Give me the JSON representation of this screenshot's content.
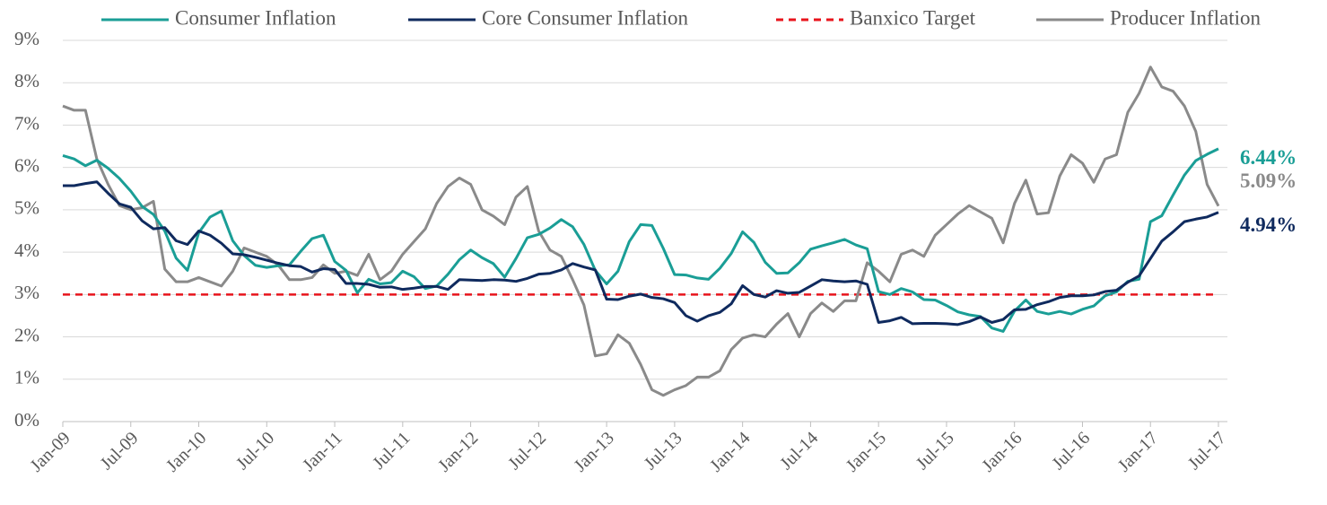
{
  "chart_data": {
    "type": "line",
    "categories": [
      "Jan-09",
      null,
      null,
      null,
      null,
      null,
      "Jul-09",
      null,
      null,
      null,
      null,
      null,
      "Jan-10",
      null,
      null,
      null,
      null,
      null,
      "Jul-10",
      null,
      null,
      null,
      null,
      null,
      "Jan-11",
      null,
      null,
      null,
      null,
      null,
      "Jul-11",
      null,
      null,
      null,
      null,
      null,
      "Jan-12",
      null,
      null,
      null,
      null,
      null,
      "Jul-12",
      null,
      null,
      null,
      null,
      null,
      "Jan-13",
      null,
      null,
      null,
      null,
      null,
      "Jul-13",
      null,
      null,
      null,
      null,
      null,
      "Jan-14",
      null,
      null,
      null,
      null,
      null,
      "Jul-14",
      null,
      null,
      null,
      null,
      null,
      "Jan-15",
      null,
      null,
      null,
      null,
      null,
      "Jul-15",
      null,
      null,
      null,
      null,
      null,
      "Jan-16",
      null,
      null,
      null,
      null,
      null,
      "Jul-16",
      null,
      null,
      null,
      null,
      null,
      "Jan-17",
      null,
      null,
      null,
      null,
      null,
      "Jul-17"
    ],
    "ylim": [
      0,
      9
    ],
    "yticks": [
      {
        "value": 0,
        "label": "0%"
      },
      {
        "value": 1,
        "label": "1%"
      },
      {
        "value": 2,
        "label": "2%"
      },
      {
        "value": 3,
        "label": "3%"
      },
      {
        "value": 4,
        "label": "4%"
      },
      {
        "value": 5,
        "label": "5%"
      },
      {
        "value": 6,
        "label": "6%"
      },
      {
        "value": 7,
        "label": "7%"
      },
      {
        "value": 8,
        "label": "8%"
      },
      {
        "value": 9,
        "label": "9%"
      }
    ],
    "grid": true,
    "legend": "top",
    "series": [
      {
        "name": "Consumer Inflation",
        "color": "#1a9e96",
        "dashed": false,
        "end_label": "6.44%",
        "values": [
          6.28,
          6.2,
          6.04,
          6.17,
          5.98,
          5.74,
          5.44,
          5.08,
          4.89,
          4.5,
          3.86,
          3.57,
          4.46,
          4.83,
          4.97,
          4.27,
          3.92,
          3.69,
          3.64,
          3.68,
          3.7,
          4.02,
          4.32,
          4.4,
          3.78,
          3.57,
          3.04,
          3.36,
          3.25,
          3.28,
          3.55,
          3.42,
          3.14,
          3.2,
          3.48,
          3.82,
          4.05,
          3.87,
          3.73,
          3.41,
          3.85,
          4.34,
          4.42,
          4.57,
          4.77,
          4.6,
          4.18,
          3.57,
          3.25,
          3.55,
          4.25,
          4.65,
          4.63,
          4.09,
          3.47,
          3.46,
          3.39,
          3.36,
          3.62,
          3.97,
          4.48,
          4.23,
          3.76,
          3.5,
          3.51,
          3.75,
          4.07,
          4.15,
          4.22,
          4.3,
          4.17,
          4.08,
          3.07,
          3.0,
          3.14,
          3.06,
          2.88,
          2.87,
          2.74,
          2.59,
          2.52,
          2.48,
          2.21,
          2.13,
          2.61,
          2.87,
          2.6,
          2.54,
          2.6,
          2.54,
          2.65,
          2.73,
          2.97,
          3.06,
          3.31,
          3.36,
          4.72,
          4.86,
          5.35,
          5.82,
          6.16,
          6.31,
          6.44
        ]
      },
      {
        "name": "Core Consumer Inflation",
        "color": "#0f2a5e",
        "dashed": false,
        "end_label": "4.94%",
        "values": [
          5.57,
          5.57,
          5.62,
          5.66,
          5.39,
          5.14,
          5.06,
          4.74,
          4.55,
          4.58,
          4.27,
          4.18,
          4.5,
          4.4,
          4.21,
          3.96,
          3.94,
          3.88,
          3.81,
          3.74,
          3.68,
          3.66,
          3.53,
          3.61,
          3.59,
          3.26,
          3.26,
          3.24,
          3.17,
          3.18,
          3.12,
          3.15,
          3.19,
          3.19,
          3.12,
          3.35,
          3.34,
          3.33,
          3.35,
          3.34,
          3.31,
          3.38,
          3.48,
          3.5,
          3.58,
          3.73,
          3.65,
          3.58,
          2.89,
          2.88,
          2.96,
          3.01,
          2.93,
          2.9,
          2.81,
          2.5,
          2.37,
          2.5,
          2.58,
          2.78,
          3.21,
          3.0,
          2.94,
          3.09,
          3.03,
          3.05,
          3.2,
          3.35,
          3.32,
          3.3,
          3.32,
          3.24,
          2.34,
          2.38,
          2.46,
          2.31,
          2.32,
          2.32,
          2.31,
          2.29,
          2.36,
          2.47,
          2.34,
          2.41,
          2.64,
          2.65,
          2.76,
          2.83,
          2.93,
          2.97,
          2.97,
          2.99,
          3.07,
          3.1,
          3.29,
          3.44,
          3.85,
          4.26,
          4.48,
          4.72,
          4.78,
          4.83,
          4.94
        ]
      },
      {
        "name": "Banxico Target",
        "color": "#e8141c",
        "dashed": true,
        "values": [
          3,
          3,
          3,
          3,
          3,
          3,
          3,
          3,
          3,
          3,
          3,
          3,
          3,
          3,
          3,
          3,
          3,
          3,
          3,
          3,
          3,
          3,
          3,
          3,
          3,
          3,
          3,
          3,
          3,
          3,
          3,
          3,
          3,
          3,
          3,
          3,
          3,
          3,
          3,
          3,
          3,
          3,
          3,
          3,
          3,
          3,
          3,
          3,
          3,
          3,
          3,
          3,
          3,
          3,
          3,
          3,
          3,
          3,
          3,
          3,
          3,
          3,
          3,
          3,
          3,
          3,
          3,
          3,
          3,
          3,
          3,
          3,
          3,
          3,
          3,
          3,
          3,
          3,
          3,
          3,
          3,
          3,
          3,
          3,
          3,
          3,
          3,
          3,
          3,
          3,
          3,
          3,
          3,
          3,
          3,
          3,
          3,
          3,
          3,
          3,
          3,
          3,
          3
        ]
      },
      {
        "name": "Producer Inflation",
        "color": "#8a8a8a",
        "dashed": false,
        "end_label": "5.09%",
        "values": [
          7.45,
          7.35,
          7.35,
          6.2,
          5.6,
          5.1,
          5.0,
          5.05,
          5.2,
          3.6,
          3.3,
          3.3,
          3.4,
          3.3,
          3.2,
          3.55,
          4.1,
          4.0,
          3.9,
          3.7,
          3.35,
          3.35,
          3.4,
          3.7,
          3.5,
          3.55,
          3.45,
          3.95,
          3.35,
          3.55,
          3.95,
          4.25,
          4.55,
          5.15,
          5.55,
          5.75,
          5.6,
          5.0,
          4.85,
          4.65,
          5.3,
          5.55,
          4.5,
          4.05,
          3.9,
          3.35,
          2.75,
          1.55,
          1.6,
          2.05,
          1.85,
          1.35,
          0.75,
          0.62,
          0.75,
          0.85,
          1.05,
          1.05,
          1.2,
          1.7,
          1.97,
          2.05,
          2.0,
          2.3,
          2.55,
          2.0,
          2.55,
          2.8,
          2.6,
          2.85,
          2.85,
          3.75,
          3.55,
          3.3,
          3.95,
          4.05,
          3.9,
          4.4,
          4.65,
          4.9,
          5.1,
          4.95,
          4.8,
          4.22,
          5.15,
          5.7,
          4.9,
          4.93,
          5.8,
          6.3,
          6.1,
          5.65,
          6.2,
          6.3,
          7.3,
          7.75,
          8.37,
          7.9,
          7.8,
          7.45,
          6.85,
          5.6,
          5.09
        ]
      }
    ]
  }
}
